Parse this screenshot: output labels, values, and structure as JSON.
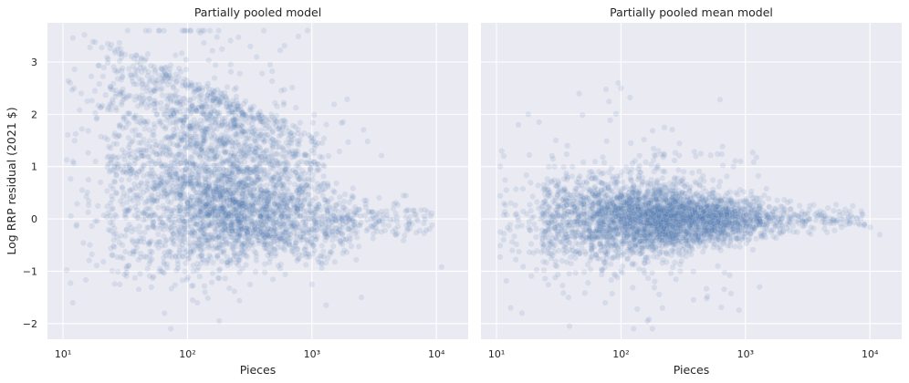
{
  "chart_data": [
    {
      "type": "scatter",
      "title": "Partially pooled model",
      "xlabel": "Pieces",
      "ylabel": "Log RRP residual (2021 $)",
      "xscale": "log",
      "xlim": [
        7.5,
        18000
      ],
      "ylim": [
        -2.3,
        3.75
      ],
      "xticks": [
        10,
        100,
        1000,
        10000
      ],
      "xtick_labels": [
        "10^1",
        "10^2",
        "10^3",
        "10^4"
      ],
      "yticks": [
        -2,
        -1,
        0,
        1,
        2,
        3
      ],
      "ytick_labels": [
        "−2",
        "−1",
        "0",
        "1",
        "2",
        "3"
      ],
      "grid": true,
      "point_color": "#4c72b0",
      "approximate_distribution": "about 4000 points; pieces mostly 10–3000 (peak near 200–400); residual spread ≈ ±2 at low piece counts narrowing to ≈ ±0.5 near 1000; diagonal banding with slope about −1.1 per decade; outliers reaching 3.5 near 12 pieces and −1.9 near 200 pieces",
      "points_sample": [
        [
          11,
          2.64
        ],
        [
          12,
          3.46
        ],
        [
          14,
          2.4
        ],
        [
          18,
          2.45
        ],
        [
          22,
          2.37
        ],
        [
          30,
          2.88
        ],
        [
          80,
          3.13
        ],
        [
          90,
          3.17
        ],
        [
          95,
          2.57
        ],
        [
          100,
          2.5
        ],
        [
          12,
          1.1
        ],
        [
          16,
          0.75
        ],
        [
          20,
          0.7
        ],
        [
          40,
          0.3
        ],
        [
          60,
          0.0
        ],
        [
          100,
          0.3
        ],
        [
          150,
          0.1
        ],
        [
          200,
          -0.1
        ],
        [
          300,
          0.0
        ],
        [
          500,
          0.1
        ],
        [
          800,
          0.05
        ],
        [
          1500,
          0.05
        ],
        [
          3000,
          0.0
        ],
        [
          9000,
          0.05
        ],
        [
          11000,
          -0.92
        ],
        [
          12,
          -1.6
        ],
        [
          30,
          -0.5
        ],
        [
          50,
          -0.8
        ],
        [
          60,
          -0.95
        ],
        [
          100,
          -0.7
        ],
        [
          110,
          -1.55
        ],
        [
          120,
          -1.6
        ],
        [
          180,
          -1.95
        ],
        [
          1000,
          -1.25
        ],
        [
          1300,
          -1.65
        ],
        [
          2500,
          -1.5
        ]
      ]
    },
    {
      "type": "scatter",
      "title": "Partially pooled mean model",
      "xlabel": "Pieces",
      "ylabel": "",
      "xscale": "log",
      "xlim": [
        7.5,
        18000
      ],
      "ylim": [
        -2.3,
        3.75
      ],
      "xticks": [
        10,
        100,
        1000,
        10000
      ],
      "xtick_labels": [
        "10^1",
        "10^2",
        "10^3",
        "10^4"
      ],
      "yticks": [
        -2,
        -1,
        0,
        1,
        2,
        3
      ],
      "ytick_labels": [],
      "grid": true,
      "point_color": "#4c72b0",
      "approximate_distribution": "about 4000 points; same piece counts; residuals centred on 0 with spread ≈ ±1 at low piece counts narrowing to ≈ ±0.4 near 1000; no banding; outliers reaching 2.6 near 95 pieces and −1.8 near 15 pieces",
      "points_sample": [
        [
          11,
          1.3
        ],
        [
          15,
          1.8
        ],
        [
          18,
          2.0
        ],
        [
          22,
          1.85
        ],
        [
          30,
          1.5
        ],
        [
          95,
          2.6
        ],
        [
          100,
          2.5
        ],
        [
          120,
          1.45
        ],
        [
          200,
          1.3
        ],
        [
          400,
          1.2
        ],
        [
          800,
          1.0
        ],
        [
          12,
          0.55
        ],
        [
          30,
          0.4
        ],
        [
          50,
          0.1
        ],
        [
          100,
          0.05
        ],
        [
          200,
          -0.05
        ],
        [
          400,
          0.0
        ],
        [
          800,
          0.05
        ],
        [
          1500,
          0.0
        ],
        [
          3000,
          -0.05
        ],
        [
          9000,
          -0.1
        ],
        [
          12000,
          -0.3
        ],
        [
          13,
          -1.7
        ],
        [
          16,
          -1.8
        ],
        [
          100,
          -1.0
        ],
        [
          300,
          -1.0
        ],
        [
          600,
          -0.9
        ],
        [
          1300,
          -1.3
        ]
      ]
    }
  ]
}
